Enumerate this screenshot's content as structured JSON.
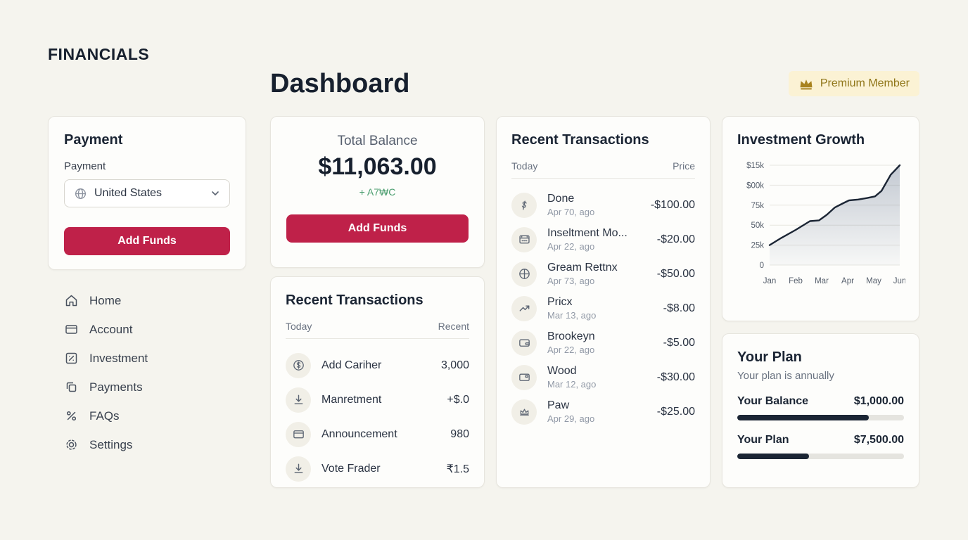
{
  "brand": "FINANCIALS",
  "header": {
    "title": "Dashboard",
    "premium_badge": "Premium Member"
  },
  "colors": {
    "background": "#f5f4ee",
    "accent_crimson": "#bf2149",
    "dark_navy": "#1b2534",
    "gold": "#a8821e",
    "badge_bg": "#fbf2d4",
    "positive_green": "#4a9d6e"
  },
  "payment_card": {
    "title": "Payment",
    "field_label": "Payment",
    "selected_country": "United States",
    "add_funds_label": "Add Funds"
  },
  "sidebar": {
    "items": [
      {
        "label": "Home"
      },
      {
        "label": "Account"
      },
      {
        "label": "Investment"
      },
      {
        "label": "Payments"
      },
      {
        "label": "FAQs"
      },
      {
        "label": "Settings"
      }
    ]
  },
  "balance_card": {
    "label": "Total Balance",
    "amount": "$11,063.00",
    "change": "+ A7₩C",
    "add_funds_label": "Add Funds"
  },
  "transactions_mid": {
    "title": "Recent Transactions",
    "col_left": "Today",
    "col_right": "Recent",
    "rows": [
      {
        "icon": "dollar-circle-icon",
        "name": "Add Cariher",
        "value": "3,000"
      },
      {
        "icon": "download-icon",
        "name": "Manretment",
        "value": "+$.0"
      },
      {
        "icon": "card-icon",
        "name": "Announcement",
        "value": "980"
      },
      {
        "icon": "download-icon",
        "name": "Vote Frader",
        "value": "₹1.5"
      }
    ]
  },
  "transactions_right": {
    "title": "Recent Transactions",
    "col_left": "Today",
    "col_right": "Price",
    "rows": [
      {
        "icon": "dollar-icon",
        "name": "Done",
        "date": "Apr 70, ago",
        "amount": "-$100.00"
      },
      {
        "icon": "calendar-icon",
        "name": "Inseltment Mo...",
        "date": "Apr 22, ago",
        "amount": "-$20.00"
      },
      {
        "icon": "globe-icon",
        "name": "Gream Rettnx",
        "date": "Apr 73, ago",
        "amount": "-$50.00"
      },
      {
        "icon": "trending-up-icon",
        "name": "Pricx",
        "date": "Mar 13, ago",
        "amount": "-$8.00"
      },
      {
        "icon": "wallet-icon",
        "name": "Brookeyn",
        "date": "Apr 22, ago",
        "amount": "-$5.00"
      },
      {
        "icon": "card-icon",
        "name": "Wood",
        "date": "Mar 12, ago",
        "amount": "-$30.00"
      },
      {
        "icon": "crown-icon",
        "name": "Paw",
        "date": "Apr 29, ago",
        "amount": "-$25.00"
      }
    ]
  },
  "growth_card": {
    "title": "Investment Growth"
  },
  "chart_data": {
    "type": "area",
    "title": "Investment Growth",
    "x_labels": [
      "Jan",
      "Feb",
      "Mar",
      "Apr",
      "May",
      "Jun"
    ],
    "y_tick_labels": [
      "$15k",
      "$00k",
      "75k",
      "50k",
      "25k",
      "0"
    ],
    "y_range": [
      0,
      125
    ],
    "points": [
      [
        0,
        25
      ],
      [
        0.45,
        34
      ],
      [
        1,
        44
      ],
      [
        1.55,
        55
      ],
      [
        1.9,
        56
      ],
      [
        2.2,
        63
      ],
      [
        2.5,
        72
      ],
      [
        2.8,
        77
      ],
      [
        3.05,
        81
      ],
      [
        3.4,
        82
      ],
      [
        3.75,
        84
      ],
      [
        4.05,
        86
      ],
      [
        4.3,
        93
      ],
      [
        4.65,
        113
      ],
      [
        5,
        125
      ]
    ],
    "line_color": "#1b2534",
    "grid": true,
    "legend": "none"
  },
  "plan_card": {
    "title": "Your Plan",
    "subtitle": "Your plan is annually",
    "rows": [
      {
        "label": "Your Balance",
        "amount": "$1,000.00",
        "progress": 79
      },
      {
        "label": "Your Plan",
        "amount": "$7,500.00",
        "progress": 43
      }
    ]
  }
}
